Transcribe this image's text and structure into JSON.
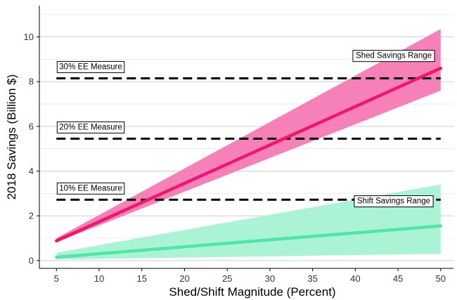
{
  "chart_data": {
    "type": "line",
    "xlabel": "Shed/Shift Magnitude (Percent)",
    "ylabel": "2018 Savings (Billion $)",
    "xlim": [
      3,
      51.5
    ],
    "ylim": [
      -0.35,
      11.4
    ],
    "xticks": [
      5,
      10,
      15,
      20,
      25,
      30,
      35,
      40,
      45,
      50
    ],
    "yticks": [
      0,
      2,
      4,
      6,
      8,
      10
    ],
    "grid": "horizontal major and minor",
    "series": [
      {
        "name": "Shed Savings Range",
        "color": "#f0166e",
        "band_color": "#f47ab4",
        "x": [
          5,
          50
        ],
        "y": [
          0.88,
          8.6
        ],
        "lower": [
          0.82,
          7.6
        ],
        "upper": [
          1.0,
          10.35
        ]
      },
      {
        "name": "Shift Savings Range",
        "color": "#4fe7a8",
        "band_color": "#a6f2d3",
        "x": [
          5,
          50
        ],
        "y": [
          0.15,
          1.55
        ],
        "lower": [
          0.05,
          0.3
        ],
        "upper": [
          0.35,
          3.4
        ]
      }
    ],
    "reference_lines": [
      {
        "label": "30% EE Measure",
        "value": 8.15
      },
      {
        "label": "20% EE Measure",
        "value": 5.45
      },
      {
        "label": "10% EE Measure",
        "value": 2.72
      }
    ],
    "annotations": [
      {
        "text": "Shed Savings Range",
        "x": 44.5,
        "y": 9.15
      },
      {
        "text": "Shift Savings Range",
        "x": 44.5,
        "y": 2.65
      }
    ]
  }
}
